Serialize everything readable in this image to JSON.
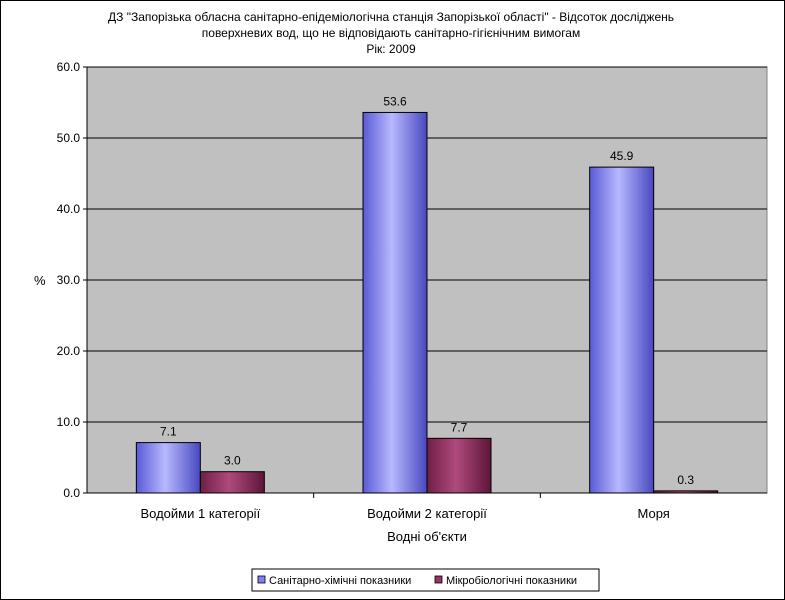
{
  "chart_data": {
    "type": "bar",
    "title": [
      "ДЗ \"Запорізька обласна санітарно-епідеміологічна станція Запорізької області\" - Відсоток досліджень",
      "поверхневих вод, що не відповідають санітарно-гігієнічним вимогам",
      "Рік: 2009"
    ],
    "xlabel": "Водні об'єкти",
    "ylabel": "%",
    "ylim": [
      0,
      60
    ],
    "yticks": [
      0,
      10,
      20,
      30,
      40,
      50,
      60
    ],
    "ytick_labels": [
      "0.0",
      "10.0",
      "20.0",
      "30.0",
      "40.0",
      "50.0",
      "60.0"
    ],
    "categories": [
      "Водойми 1 категорії",
      "Водойми 2 категорії",
      "Моря"
    ],
    "series": [
      {
        "name": "Санітарно-хімічні показники",
        "values": [
          7.1,
          53.6,
          45.9
        ],
        "labels": [
          "7.1",
          "53.6",
          "45.9"
        ],
        "color": "#8080ff"
      },
      {
        "name": "Мікробіологічні показники",
        "values": [
          3.0,
          7.7,
          0.3
        ],
        "labels": [
          "3.0",
          "7.7",
          "0.3"
        ],
        "color": "#993366"
      }
    ],
    "grid": true,
    "plot_background": "#c0c0c0",
    "legend_position": "bottom"
  }
}
